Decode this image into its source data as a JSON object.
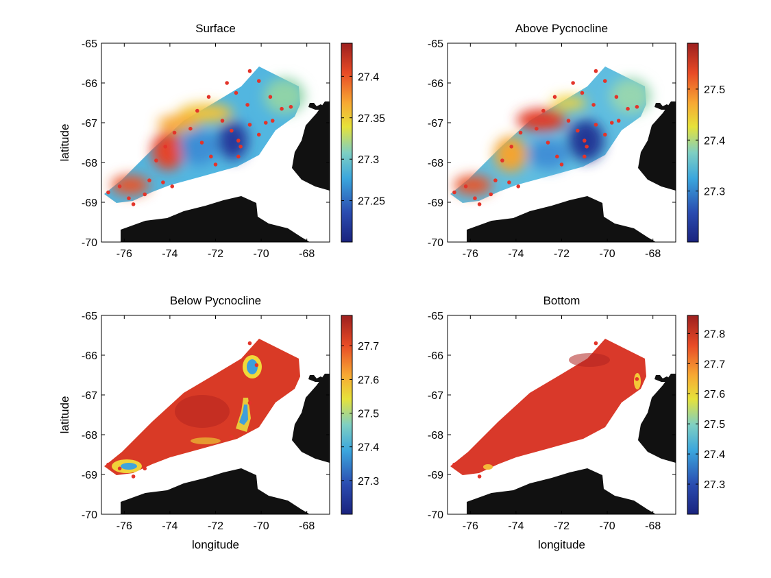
{
  "chart_data": [
    {
      "type": "heatmap",
      "title": "Surface",
      "xlabel": "",
      "ylabel": "latitude",
      "xlim": [
        -77,
        -67
      ],
      "ylim": [
        -70,
        -65
      ],
      "xticks": [
        "-76",
        "-74",
        "-72",
        "-70",
        "-68"
      ],
      "yticks": [
        "-65",
        "-66",
        "-67",
        "-68",
        "-69",
        "-70"
      ],
      "colorbar": {
        "ticks": [
          "27.25",
          "27.3",
          "27.35",
          "27.4"
        ],
        "tick_values": [
          27.25,
          27.3,
          27.35,
          27.4
        ],
        "range": [
          27.2,
          27.44
        ]
      },
      "colors": {
        "high": "#d7261e",
        "low": "#27358f"
      },
      "stations": [
        [
          -76.7,
          -68.75
        ],
        [
          -76.2,
          -68.6
        ],
        [
          -75.8,
          -68.9
        ],
        [
          -75.6,
          -69.05
        ],
        [
          -75.1,
          -68.8
        ],
        [
          -74.9,
          -68.45
        ],
        [
          -74.3,
          -68.5
        ],
        [
          -73.9,
          -68.6
        ],
        [
          -74.6,
          -67.95
        ],
        [
          -74.2,
          -67.6
        ],
        [
          -73.8,
          -67.25
        ],
        [
          -73.1,
          -67.15
        ],
        [
          -72.6,
          -67.5
        ],
        [
          -72.2,
          -67.85
        ],
        [
          -72.8,
          -66.7
        ],
        [
          -72.3,
          -66.35
        ],
        [
          -71.7,
          -66.95
        ],
        [
          -71.3,
          -67.2
        ],
        [
          -70.9,
          -67.6
        ],
        [
          -70.5,
          -67.05
        ],
        [
          -70.1,
          -67.3
        ],
        [
          -69.5,
          -66.95
        ],
        [
          -69.1,
          -66.65
        ],
        [
          -68.7,
          -66.6
        ],
        [
          -70.5,
          -65.7
        ],
        [
          -70.1,
          -65.95
        ],
        [
          -69.6,
          -66.35
        ],
        [
          -71.1,
          -66.25
        ],
        [
          -70.6,
          -66.55
        ],
        [
          -71.5,
          -66.0
        ],
        [
          -69.8,
          -67.0
        ],
        [
          -71.0,
          -67.45
        ],
        [
          -71.0,
          -67.85
        ],
        [
          -72.0,
          -68.05
        ]
      ]
    },
    {
      "type": "heatmap",
      "title": "Above Pycnocline",
      "xlabel": "",
      "ylabel": "",
      "xlim": [
        -77,
        -67
      ],
      "ylim": [
        -70,
        -65
      ],
      "xticks": [
        "-76",
        "-74",
        "-72",
        "-70",
        "-68"
      ],
      "yticks": [
        "-65",
        "-66",
        "-67",
        "-68",
        "-69",
        "-70"
      ],
      "colorbar": {
        "ticks": [
          "27.3",
          "27.4",
          "27.5"
        ],
        "tick_values": [
          27.3,
          27.4,
          27.5
        ],
        "range": [
          27.2,
          27.59
        ]
      },
      "colors": {
        "high": "#d7261e",
        "low": "#27358f"
      },
      "stations": [
        [
          -76.7,
          -68.75
        ],
        [
          -76.2,
          -68.6
        ],
        [
          -75.8,
          -68.9
        ],
        [
          -75.6,
          -69.05
        ],
        [
          -75.1,
          -68.8
        ],
        [
          -74.9,
          -68.45
        ],
        [
          -74.3,
          -68.5
        ],
        [
          -73.9,
          -68.6
        ],
        [
          -74.6,
          -67.95
        ],
        [
          -74.2,
          -67.6
        ],
        [
          -73.8,
          -67.25
        ],
        [
          -73.1,
          -67.15
        ],
        [
          -72.6,
          -67.5
        ],
        [
          -72.2,
          -67.85
        ],
        [
          -72.8,
          -66.7
        ],
        [
          -72.3,
          -66.35
        ],
        [
          -71.7,
          -66.95
        ],
        [
          -71.3,
          -67.2
        ],
        [
          -70.9,
          -67.6
        ],
        [
          -70.5,
          -67.05
        ],
        [
          -70.1,
          -67.3
        ],
        [
          -69.5,
          -66.95
        ],
        [
          -69.1,
          -66.65
        ],
        [
          -68.7,
          -66.6
        ],
        [
          -70.5,
          -65.7
        ],
        [
          -70.1,
          -65.95
        ],
        [
          -69.6,
          -66.35
        ],
        [
          -71.1,
          -66.25
        ],
        [
          -70.6,
          -66.55
        ],
        [
          -71.5,
          -66.0
        ],
        [
          -69.8,
          -67.0
        ],
        [
          -71.0,
          -67.45
        ],
        [
          -71.0,
          -67.85
        ],
        [
          -72.0,
          -68.05
        ]
      ]
    },
    {
      "type": "heatmap",
      "title": "Below Pycnocline",
      "xlabel": "longitude",
      "ylabel": "latitude",
      "xlim": [
        -77,
        -67
      ],
      "ylim": [
        -70,
        -65
      ],
      "xticks": [
        "-76",
        "-74",
        "-72",
        "-70",
        "-68"
      ],
      "yticks": [
        "-65",
        "-66",
        "-67",
        "-68",
        "-69",
        "-70"
      ],
      "colorbar": {
        "ticks": [
          "27.3",
          "27.4",
          "27.5",
          "27.6",
          "27.7"
        ],
        "tick_values": [
          27.3,
          27.4,
          27.5,
          27.6,
          27.7
        ],
        "range": [
          27.2,
          27.79
        ]
      },
      "colors": {
        "high": "#d7261e",
        "low": "#27358f"
      },
      "stations": [
        [
          -76.7,
          -68.75
        ],
        [
          -76.2,
          -68.85
        ],
        [
          -75.6,
          -69.05
        ],
        [
          -75.1,
          -68.85
        ],
        [
          -70.5,
          -65.7
        ],
        [
          -70.2,
          -66.25
        ],
        [
          -70.5,
          -67.2
        ],
        [
          -71.3,
          -68.05
        ]
      ]
    },
    {
      "type": "heatmap",
      "title": "Bottom",
      "xlabel": "longitude",
      "ylabel": "",
      "xlim": [
        -77,
        -67
      ],
      "ylim": [
        -70,
        -65
      ],
      "xticks": [
        "-76",
        "-74",
        "-72",
        "-70",
        "-68"
      ],
      "yticks": [
        "-65",
        "-66",
        "-67",
        "-68",
        "-69",
        "-70"
      ],
      "colorbar": {
        "ticks": [
          "27.3",
          "27.4",
          "27.5",
          "27.6",
          "27.7",
          "27.8"
        ],
        "tick_values": [
          27.3,
          27.4,
          27.5,
          27.6,
          27.7,
          27.8
        ],
        "range": [
          27.2,
          27.86
        ]
      },
      "colors": {
        "high": "#d7261e",
        "low": "#27358f"
      },
      "stations": [
        [
          -76.7,
          -68.75
        ],
        [
          -75.6,
          -69.05
        ],
        [
          -70.5,
          -65.7
        ],
        [
          -68.7,
          -66.6
        ]
      ]
    }
  ]
}
